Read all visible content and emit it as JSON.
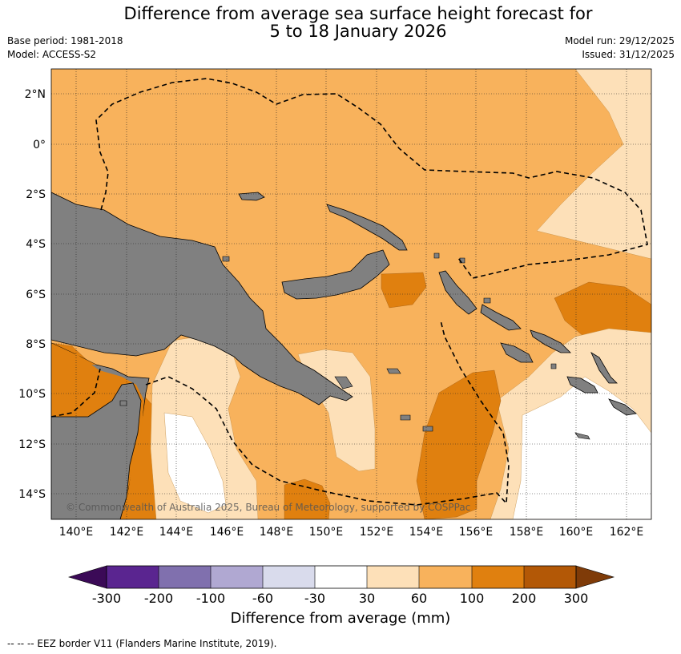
{
  "header": {
    "title_line1": "Difference from average sea surface height forecast for",
    "title_line2": "5 to 18 January 2026",
    "base_period": "Base period: 1981-2018",
    "model": "Model: ACCESS-S2",
    "model_run": "Model run: 29/12/2025",
    "issued": "Issued: 31/12/2025"
  },
  "map": {
    "latitude_labels": [
      "2°N",
      "0°",
      "2°S",
      "4°S",
      "6°S",
      "8°S",
      "10°S",
      "12°S",
      "14°S"
    ],
    "longitude_labels": [
      "140°E",
      "142°E",
      "144°E",
      "146°E",
      "148°E",
      "150°E",
      "152°E",
      "154°E",
      "156°E",
      "158°E",
      "160°E",
      "162°E"
    ],
    "copyright": "© Commonwealth of Australia 2025, Bureau of Meteorology, supported by COSPPac",
    "colors": {
      "land": "#808080",
      "c_30_60": "#fde0b8",
      "c_60_100": "#f8b25c",
      "c_100_200": "#e0800f",
      "no_diff": "#ffffff"
    }
  },
  "colorbar": {
    "tick_labels": [
      "-300",
      "-200",
      "-100",
      "-60",
      "-30",
      "30",
      "60",
      "100",
      "200",
      "300"
    ],
    "label": "Difference from average (mm)",
    "colors": [
      "#3b0a57",
      "#5a2590",
      "#8070ae",
      "#b0a8d2",
      "#d9dbec",
      "#ffffff",
      "#fde0b8",
      "#f8b25c",
      "#e0800f",
      "#b35806",
      "#7f3b08"
    ]
  },
  "footer": {
    "legend_text": "--  --  -- EEZ border V11 (Flanders Marine Institute, 2019)."
  }
}
